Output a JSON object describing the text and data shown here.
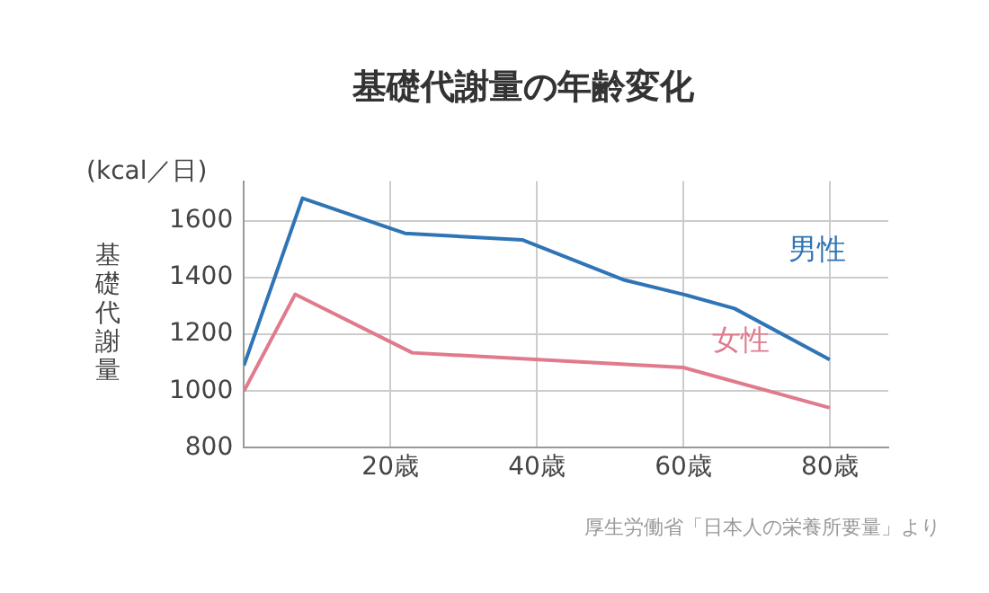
{
  "chart_data": {
    "type": "line",
    "title": "基礎代謝量の年齢変化",
    "ylabel": "基礎代謝量",
    "annotations": [
      "(kcal／日)",
      "厚生労働省「日本人の栄養所要量」より"
    ],
    "xlim": [
      0,
      88
    ],
    "xticks": [
      {
        "value": 20,
        "label": "20歳"
      },
      {
        "value": 40,
        "label": "40歳"
      },
      {
        "value": 60,
        "label": "60歳"
      },
      {
        "value": 80,
        "label": "80歳"
      }
    ],
    "ylim": [
      800,
      1740
    ],
    "yticks": [
      800,
      1000,
      1200,
      1400,
      1600
    ],
    "grid": true,
    "legend": false,
    "marker": "none",
    "line_style": "solid",
    "series": [
      {
        "name": "男性",
        "color": "#2f74b5",
        "x": [
          0,
          8,
          22,
          38,
          52,
          60,
          67,
          80
        ],
        "values": [
          1090,
          1680,
          1556,
          1533,
          1391,
          1341,
          1291,
          1111
        ]
      },
      {
        "name": "女性",
        "color": "#e07a8c",
        "x": [
          0,
          7,
          23,
          60,
          80
        ],
        "values": [
          1000,
          1341,
          1135,
          1083,
          941
        ]
      }
    ]
  }
}
